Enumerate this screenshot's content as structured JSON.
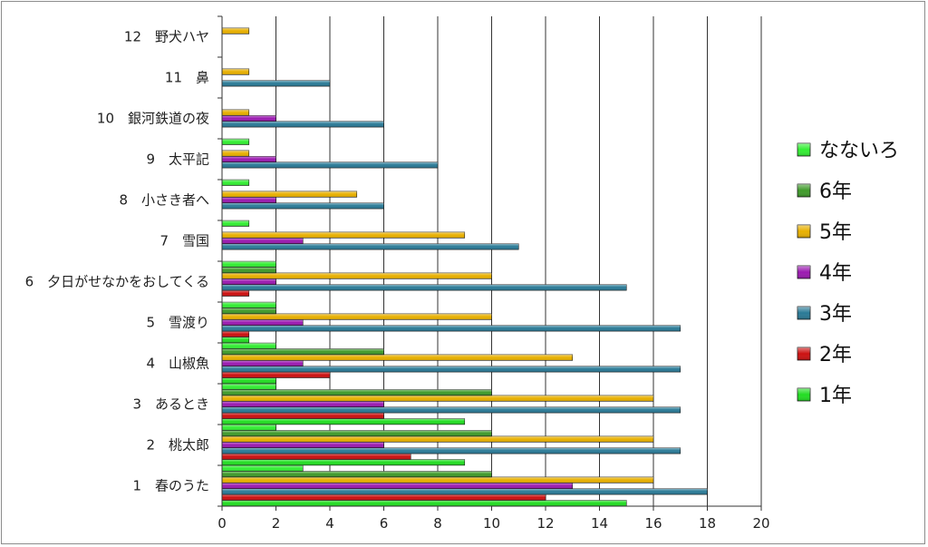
{
  "chart_data": {
    "type": "bar",
    "orientation": "horizontal",
    "categories": [
      "1　春のうた",
      "2　桃太郎",
      "3　あるとき",
      "4　山椒魚",
      "5　雪渡り",
      "6　夕日がせなかをおしてくる",
      "7　雪国",
      "8　小さき者へ",
      "9　太平記",
      "10　銀河鉄道の夜",
      "11　鼻",
      "12　野犬ハヤ"
    ],
    "series": [
      {
        "name": "1年",
        "color": "#22dd22",
        "values": [
          15,
          9,
          9,
          2,
          1,
          0,
          0,
          0,
          0,
          0,
          0,
          0
        ]
      },
      {
        "name": "2年",
        "color": "#cc1111",
        "values": [
          12,
          7,
          6,
          4,
          1,
          1,
          0,
          0,
          0,
          0,
          0,
          0
        ]
      },
      {
        "name": "3年",
        "color": "#2a7a96",
        "values": [
          18,
          17,
          17,
          17,
          17,
          15,
          11,
          6,
          8,
          6,
          4,
          0
        ]
      },
      {
        "name": "4年",
        "color": "#9b1ab0",
        "values": [
          13,
          6,
          6,
          3,
          3,
          2,
          3,
          2,
          2,
          2,
          0,
          0
        ]
      },
      {
        "name": "5年",
        "color": "#e8b000",
        "values": [
          16,
          16,
          16,
          13,
          10,
          10,
          9,
          5,
          1,
          1,
          1,
          1
        ]
      },
      {
        "name": "6年",
        "color": "#3f9a2a",
        "values": [
          10,
          10,
          10,
          6,
          2,
          2,
          0,
          0,
          0,
          0,
          0,
          0
        ]
      },
      {
        "name": "なないろ",
        "color": "#33ee33",
        "values": [
          3,
          2,
          2,
          2,
          2,
          2,
          1,
          1,
          1,
          0,
          0,
          0
        ]
      }
    ],
    "xlim": [
      0,
      20
    ],
    "xticks": [
      0,
      2,
      4,
      6,
      8,
      10,
      12,
      14,
      16,
      18,
      20
    ],
    "grid": "vertical",
    "legend": {
      "placement": "right",
      "order": [
        "なないろ",
        "6年",
        "5年",
        "4年",
        "3年",
        "2年",
        "1年"
      ]
    }
  }
}
